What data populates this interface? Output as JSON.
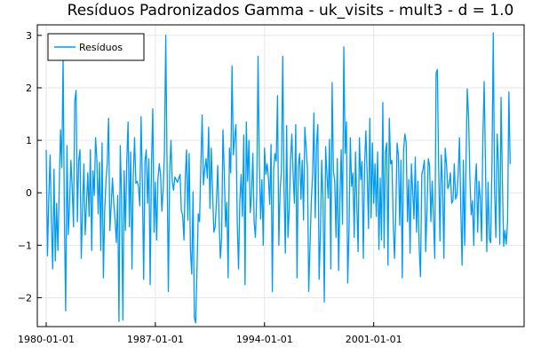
{
  "chart_data": {
    "type": "line",
    "title": "Resíduos Padronizados Gamma - uk_visits - mult3 - d = 1.0",
    "xlabel": "",
    "ylabel": "",
    "x_start": "1980-01-01",
    "x_frequency": "monthly",
    "x_ticks": [
      "1980-01-01",
      "1987-01-01",
      "1994-01-01",
      "2001-01-01"
    ],
    "y_ticks": [
      -2,
      -1,
      0,
      1,
      2,
      3
    ],
    "ylim": [
      -2.55,
      3.2
    ],
    "grid": true,
    "legend_position": "top-left",
    "series": [
      {
        "name": "Resíduos",
        "color": "#009af9",
        "values": [
          0.82,
          -1.2,
          -0.1,
          0.72,
          -0.52,
          -1.45,
          0.45,
          -1.3,
          -0.2,
          -1.1,
          0.05,
          1.2,
          0.48,
          2.61,
          -0.48,
          -2.25,
          0.9,
          -0.8,
          -0.2,
          0.62,
          0.1,
          -0.65,
          1.75,
          1.95,
          -0.55,
          0.62,
          0.82,
          -1.25,
          -0.3,
          0.55,
          -0.8,
          -0.22,
          0.38,
          -0.45,
          0.82,
          -1.1,
          0.42,
          -0.05,
          1.05,
          0.62,
          -0.4,
          0.58,
          -1.1,
          0.95,
          -1.62,
          -0.35,
          0.22,
          0.58,
          1.42,
          -0.72,
          -0.25,
          0.28,
          -0.2,
          -0.52,
          -0.95,
          -0.05,
          -2.45,
          0.9,
          -0.1,
          -2.42,
          0.42,
          -0.72,
          0.6,
          1.35,
          -0.65,
          0.78,
          -1.45,
          0.32,
          1.05,
          0.18,
          0.22,
          0.12,
          -0.25,
          1.45,
          0.2,
          -1.65,
          0.6,
          0.82,
          -0.2,
          0.65,
          -1.75,
          0.52,
          1.6,
          -0.75,
          0.2,
          -0.9,
          0.28,
          0.55,
          0.35,
          -0.35,
          0.05,
          0.8,
          3.0,
          0.55,
          -1.88,
          0.38,
          1.0,
          0.22,
          0.05,
          0.3,
          0.25,
          0.2,
          0.28,
          0.35,
          -0.35,
          -0.42,
          -0.9,
          0.28,
          0.82,
          -0.52,
          0.75,
          -1.1,
          -1.55,
          0.02,
          -2.38,
          -2.48,
          -1.5,
          -0.4,
          -0.55,
          0.52,
          1.48,
          0.15,
          0.45,
          0.65,
          0.28,
          1.25,
          -0.3,
          0.85,
          0.05,
          -0.75,
          -0.65,
          -0.18,
          0.52,
          -0.5,
          -1.25,
          -0.85,
          1.2,
          0.42,
          -0.65,
          -0.18,
          -1.62,
          0.85,
          0.38,
          2.42,
          0.72,
          1.05,
          1.3,
          -0.55,
          -1.45,
          -0.15,
          0.35,
          -0.45,
          1.1,
          -1.75,
          1.35,
          0.22,
          1.0,
          -0.38,
          -0.05,
          0.75,
          -0.55,
          -0.85,
          -0.05,
          2.6,
          0.55,
          -0.5,
          0.25,
          -1.0,
          0.85,
          0.35,
          0.55,
          0.28,
          -0.22,
          0.92,
          -1.88,
          0.45,
          0.75,
          0.6,
          1.85,
          -1.0,
          0.05,
          0.42,
          2.6,
          0.1,
          -1.15,
          1.28,
          -0.85,
          -0.32,
          0.6,
          1.12,
          0.35,
          -0.2,
          1.3,
          -1.62,
          0.52,
          0.75,
          -0.12,
          0.62,
          -0.52,
          1.25,
          0.85,
          0.48,
          -1.88,
          -1.0,
          -0.15,
          0.35,
          1.52,
          -0.48,
          0.9,
          1.3,
          -1.65,
          -0.78,
          0.62,
          -0.15,
          -2.08,
          0.88,
          0.35,
          -0.1,
          1.02,
          -1.45,
          2.1,
          0.42,
          0.22,
          -0.85,
          0.65,
          -1.48,
          -0.12,
          0.82,
          -0.6,
          2.78,
          0.75,
          1.35,
          -1.72,
          -0.72,
          1.05,
          0.12,
          0.38,
          -0.85,
          0.78,
          -0.22,
          -1.12,
          1.05,
          0.25,
          0.6,
          -1.25,
          0.55,
          1.18,
          0.32,
          -0.68,
          1.42,
          -0.48,
          0.95,
          -0.2,
          0.55,
          -0.45,
          0.78,
          -1.08,
          0.28,
          -0.9,
          1.72,
          -1.05,
          0.78,
          0.95,
          -1.38,
          1.42,
          0.55,
          0.62,
          -0.55,
          -1.25,
          -0.38,
          0.95,
          0.72,
          -0.62,
          0.62,
          -1.62,
          0.82,
          1.12,
          0.95,
          -0.55,
          0.25,
          -1.15,
          0.55,
          0.02,
          -0.5,
          0.68,
          -0.75,
          0.22,
          -1.05,
          -1.6,
          0.35,
          0.45,
          0.62,
          -1.12,
          -0.35,
          0.65,
          0.52,
          -0.55,
          0.22,
          -0.48,
          -1.25,
          2.28,
          2.35,
          0.45,
          -0.92,
          0.72,
          0.15,
          -1.25,
          0.85,
          0.55,
          0.08,
          0.15,
          0.38,
          -0.2,
          -0.15,
          0.55,
          -0.12,
          -0.05,
          0.35,
          1.05,
          -0.28,
          -1.38,
          0.62,
          -1.0,
          0.52,
          1.98,
          1.45,
          0.28,
          -0.42,
          -0.15,
          -1.0,
          0.15,
          0.55,
          -0.75,
          0.22,
          -0.12,
          -0.92,
          1.05,
          2.12,
          0.55,
          -1.12,
          0.2,
          -0.88,
          -0.95,
          0.55,
          3.05,
          0.05,
          -0.85,
          1.12,
          0.55,
          -0.98,
          1.82,
          0.25,
          -1.02,
          -0.72,
          -0.98,
          -0.55,
          1.92,
          0.55
        ]
      }
    ]
  }
}
